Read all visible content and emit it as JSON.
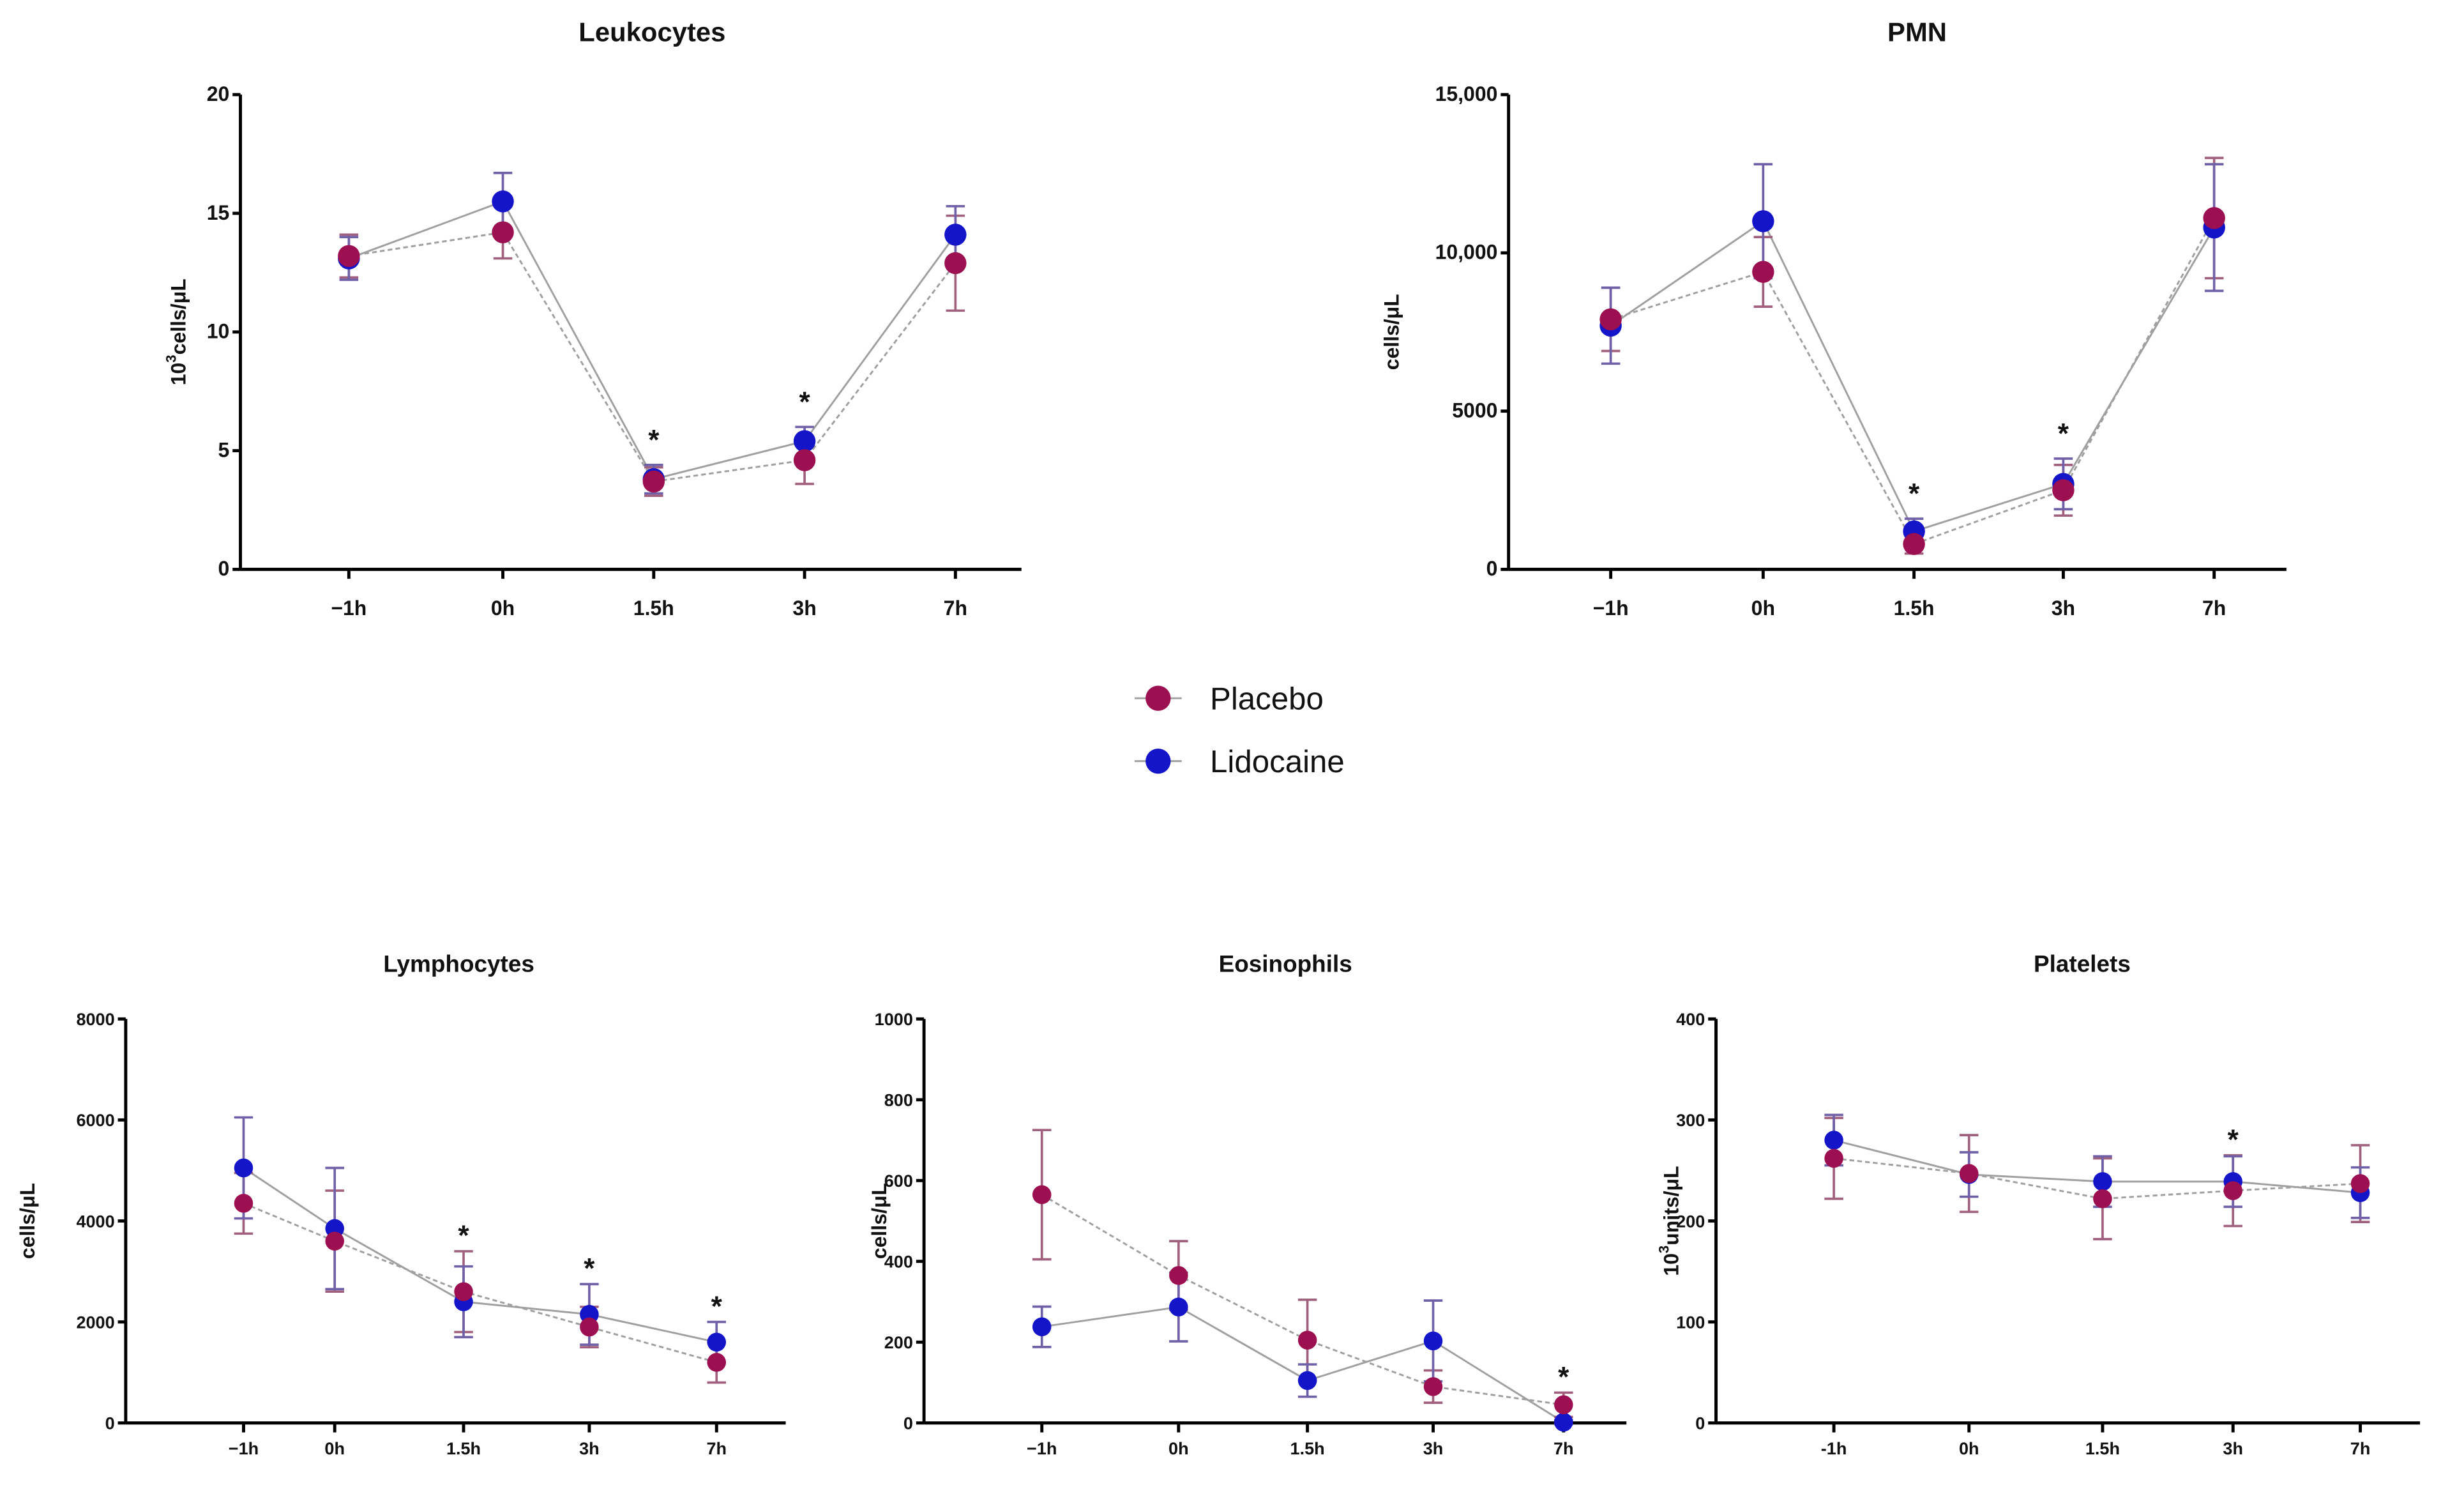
{
  "legend": {
    "placebo": "Placebo",
    "lidocaine": "Lidocaine"
  },
  "colors": {
    "placebo": "#9c1052",
    "lidocaine": "#1414c8",
    "placebo_err": "#a0607e",
    "lidocaine_err": "#7060a8",
    "line": "#a0a0a0"
  },
  "chart_data": [
    {
      "type": "line",
      "title": "Leukocytes",
      "ylabel_base": "10",
      "ylabel_sup": "3",
      "ylabel_rest": "cells/μL",
      "categories": [
        "−1h",
        "0h",
        "1.5h",
        "3h",
        "7h"
      ],
      "ylim": [
        0,
        20
      ],
      "yticks": [
        0,
        5,
        10,
        15,
        20
      ],
      "ytick_labels": [
        "0",
        "5",
        "10",
        "15",
        "20"
      ],
      "series": [
        {
          "name": "Placebo",
          "values": [
            13.2,
            14.2,
            3.7,
            4.6,
            12.9
          ],
          "errors": [
            0.9,
            1.1,
            0.6,
            1.0,
            2.0
          ]
        },
        {
          "name": "Lidocaine",
          "values": [
            13.1,
            15.5,
            3.8,
            5.4,
            14.1
          ],
          "errors": [
            0.9,
            1.2,
            0.6,
            0.6,
            1.2
          ]
        }
      ],
      "significant": [
        "1.5h",
        "3h"
      ],
      "significance_mark": "*"
    },
    {
      "type": "line",
      "title": "PMN",
      "ylabel_base": "cells/μL",
      "ylabel_sup": "",
      "ylabel_rest": "",
      "categories": [
        "−1h",
        "0h",
        "1.5h",
        "3h",
        "7h"
      ],
      "ylim": [
        0,
        15000
      ],
      "yticks": [
        0,
        5000,
        10000,
        15000
      ],
      "ytick_labels": [
        "0",
        "5000",
        "10,000",
        "15,000"
      ],
      "series": [
        {
          "name": "Placebo",
          "values": [
            7900,
            9400,
            800,
            2500,
            11100
          ],
          "errors": [
            1000,
            1100,
            300,
            800,
            1900
          ]
        },
        {
          "name": "Lidocaine",
          "values": [
            7700,
            11000,
            1200,
            2700,
            10800
          ],
          "errors": [
            1200,
            1800,
            400,
            800,
            2000
          ]
        }
      ],
      "significant": [
        "1.5h",
        "3h"
      ],
      "significance_mark": "*"
    },
    {
      "type": "line",
      "title": "Lymphocytes",
      "ylabel_base": "cells/μL",
      "ylabel_sup": "",
      "ylabel_rest": "",
      "categories": [
        "−1h",
        "0h",
        "1.5h",
        "3h",
        "7h"
      ],
      "ylim": [
        0,
        8000
      ],
      "yticks": [
        0,
        2000,
        4000,
        6000,
        8000
      ],
      "ytick_labels": [
        "0",
        "2000",
        "4000",
        "6000",
        "8000"
      ],
      "series": [
        {
          "name": "Placebo",
          "values": [
            4350,
            3600,
            2600,
            1900,
            1200
          ],
          "errors": [
            600,
            1000,
            800,
            400,
            400
          ]
        },
        {
          "name": "Lidocaine",
          "values": [
            5050,
            3850,
            2400,
            2150,
            1600
          ],
          "errors": [
            1000,
            1200,
            700,
            600,
            400
          ]
        }
      ],
      "significant": [
        "1.5h",
        "3h",
        "7h"
      ],
      "significance_mark": "*"
    },
    {
      "type": "line",
      "title": "Eosinophils",
      "ylabel_base": "cells/μL",
      "ylabel_sup": "",
      "ylabel_rest": "",
      "categories": [
        "−1h",
        "0h",
        "1.5h",
        "3h",
        "7h"
      ],
      "ylim": [
        0,
        1000
      ],
      "yticks": [
        0,
        200,
        400,
        600,
        800,
        1000
      ],
      "ytick_labels": [
        "0",
        "200",
        "400",
        "600",
        "800",
        "1000"
      ],
      "series": [
        {
          "name": "Placebo",
          "values": [
            565,
            365,
            205,
            90,
            45
          ],
          "errors": [
            160,
            85,
            100,
            40,
            30
          ]
        },
        {
          "name": "Lidocaine",
          "values": [
            238,
            287,
            105,
            203,
            2
          ],
          "errors": [
            50,
            85,
            40,
            100,
            5
          ]
        }
      ],
      "significant": [
        "7h"
      ],
      "significance_mark": "*"
    },
    {
      "type": "line",
      "title": "Platelets",
      "ylabel_base": "10",
      "ylabel_sup": "3",
      "ylabel_rest": "units/μL",
      "categories": [
        "-1h",
        "0h",
        "1.5h",
        "3h",
        "7h"
      ],
      "ylim": [
        0,
        400
      ],
      "yticks": [
        0,
        100,
        200,
        300,
        400
      ],
      "ytick_labels": [
        "0",
        "100",
        "200",
        "300",
        "400"
      ],
      "series": [
        {
          "name": "Placebo",
          "values": [
            262,
            247,
            222,
            230,
            237
          ],
          "errors": [
            40,
            38,
            40,
            35,
            38
          ]
        },
        {
          "name": "Lidocaine",
          "values": [
            280,
            246,
            239,
            239,
            228
          ],
          "errors": [
            25,
            22,
            25,
            25,
            25
          ]
        }
      ],
      "significant": [
        "3h"
      ],
      "significance_mark": "*"
    }
  ]
}
